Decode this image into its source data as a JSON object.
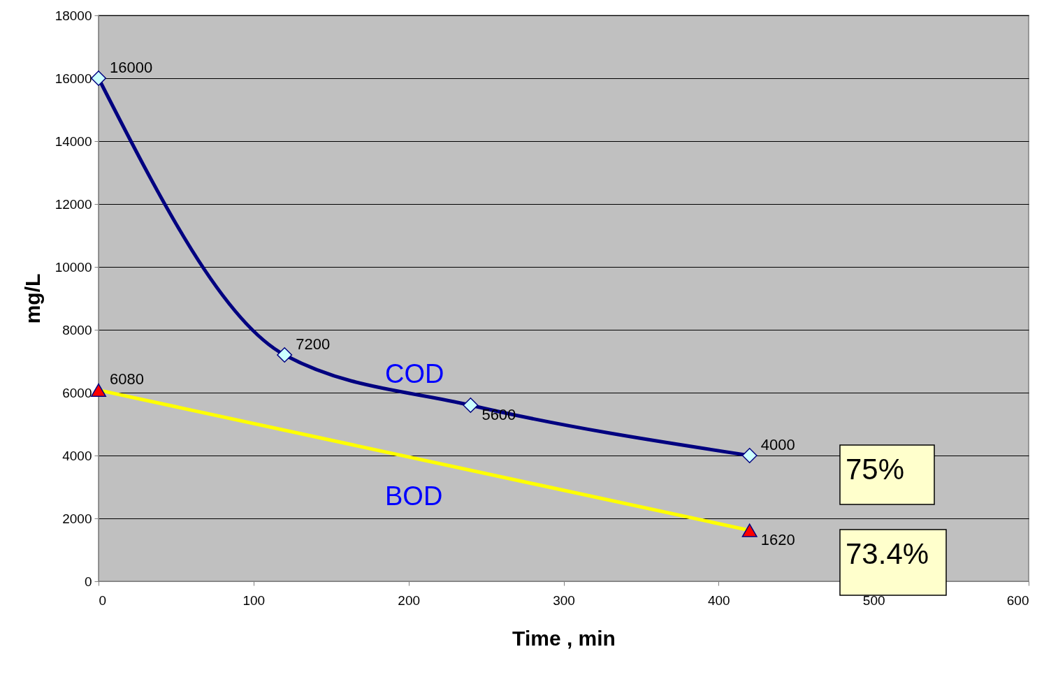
{
  "chart_data": {
    "type": "line",
    "xlabel": "Time , min",
    "ylabel": "mg/L",
    "xlim": [
      0,
      600
    ],
    "xticks": [
      0,
      100,
      200,
      300,
      400,
      500,
      600
    ],
    "ylim": [
      0,
      18000
    ],
    "yticks": [
      0,
      2000,
      4000,
      6000,
      8000,
      10000,
      12000,
      14000,
      16000,
      18000
    ],
    "grid": "y",
    "data_labels": true,
    "series": [
      {
        "name": "COD",
        "color": "#000080",
        "marker": "diamond",
        "x": [
          0,
          120,
          240,
          420
        ],
        "values": [
          16000,
          7200,
          5600,
          4000
        ]
      },
      {
        "name": "BOD",
        "color": "#ffff00",
        "marker": "triangle",
        "x": [
          0,
          420
        ],
        "values": [
          6080,
          1620
        ]
      }
    ],
    "annotations": [
      "75%",
      "73.4%"
    ]
  }
}
